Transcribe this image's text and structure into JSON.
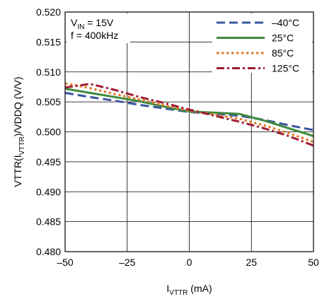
{
  "chart_data": {
    "type": "line",
    "title": "",
    "xlabel_main": "I",
    "xlabel_sub": "VTTR",
    "xlabel_unit": " (mA)",
    "ylabel_prefix": "VTTR(I",
    "ylabel_sub": "VTTR",
    "ylabel_suffix": ")/VDDQ (V/V)",
    "xlim": [
      -50,
      50
    ],
    "ylim": [
      0.48,
      0.52
    ],
    "xticks": [
      -50,
      -25,
      0,
      25,
      50
    ],
    "xtick_labels": [
      "–50",
      "–25",
      "0",
      "25",
      "50"
    ],
    "yticks": [
      0.48,
      0.485,
      0.49,
      0.495,
      0.5,
      0.505,
      0.51,
      0.515,
      0.52
    ],
    "ytick_labels": [
      "0.480",
      "0.485",
      "0.490",
      "0.495",
      "0.500",
      "0.505",
      "0.510",
      "0.515",
      "0.520"
    ],
    "grid": true,
    "legend_position": "top-right",
    "annotations": {
      "vin_main": "V",
      "vin_sub": "IN",
      "vin_rest": " = 15V",
      "freq": "f = 400kHz"
    },
    "series": [
      {
        "name": "–40°C",
        "color": "#3a55a0",
        "style": "dashed",
        "x": [
          -50,
          -40,
          -30,
          -20,
          -10,
          0,
          10,
          20,
          30,
          40,
          50
        ],
        "y": [
          0.5065,
          0.5058,
          0.5052,
          0.5045,
          0.5039,
          0.5033,
          0.503,
          0.5027,
          0.502,
          0.5011,
          0.5003
        ]
      },
      {
        "name": "25°C",
        "color": "#3e8a3e",
        "style": "solid",
        "x": [
          -50,
          -40,
          -30,
          -20,
          -10,
          0,
          10,
          20,
          30,
          40,
          50
        ],
        "y": [
          0.5072,
          0.5065,
          0.5058,
          0.5051,
          0.5042,
          0.5034,
          0.5032,
          0.503,
          0.5019,
          0.5006,
          0.4993
        ]
      },
      {
        "name": "85°C",
        "color": "#e07b2a",
        "style": "dotted",
        "x": [
          -50,
          -40,
          -30,
          -20,
          -10,
          0,
          10,
          20,
          30,
          40,
          50
        ],
        "y": [
          0.5081,
          0.5073,
          0.5063,
          0.5054,
          0.5044,
          0.5035,
          0.5029,
          0.5022,
          0.5011,
          0.4998,
          0.4983
        ]
      },
      {
        "name": "125°C",
        "color": "#9e1b32",
        "style": "dashdot",
        "x": [
          -50,
          -40,
          -30,
          -20,
          -10,
          0,
          10,
          20,
          30,
          40,
          50
        ],
        "y": [
          0.5074,
          0.508,
          0.507,
          0.5058,
          0.5048,
          0.5037,
          0.5027,
          0.5017,
          0.5006,
          0.4993,
          0.4977
        ]
      }
    ]
  }
}
